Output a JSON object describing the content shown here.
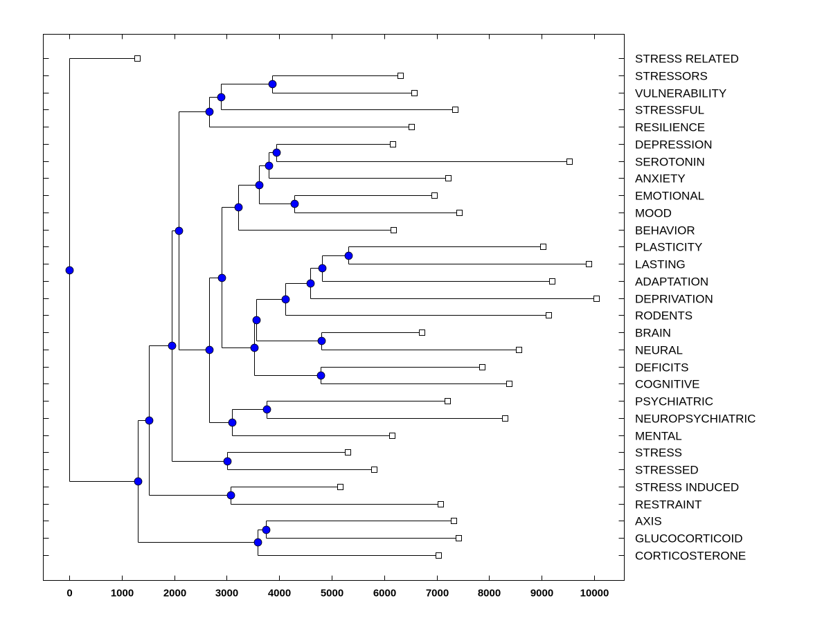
{
  "chart_data": {
    "type": "dendrogram",
    "title": "",
    "xlabel": "",
    "ylabel": "",
    "xlim": [
      -500,
      10550
    ],
    "x_ticks": [
      0,
      1000,
      2000,
      3000,
      4000,
      5000,
      6000,
      7000,
      8000,
      9000,
      10000
    ],
    "x_tick_labels": [
      "0",
      "1000",
      "2000",
      "3000",
      "4000",
      "5000",
      "6000",
      "7000",
      "8000",
      "9000",
      "10000"
    ],
    "grid": false,
    "legend": "none",
    "colors": {
      "line": "#000000",
      "node_fill": "#0000ff",
      "node_stroke": "#000000",
      "leaf_fill": "#ffffff",
      "background": "#ffffff"
    },
    "leaves": [
      {
        "label": "STRESS RELATED",
        "value": 1300
      },
      {
        "label": "STRESSORS",
        "value": 6320
      },
      {
        "label": "VULNERABILITY",
        "value": 6580
      },
      {
        "label": "STRESSFUL",
        "value": 7360
      },
      {
        "label": "RESILIENCE",
        "value": 6530
      },
      {
        "label": "DEPRESSION",
        "value": 6170
      },
      {
        "label": "SEROTONIN",
        "value": 9540
      },
      {
        "label": "ANXIETY",
        "value": 7230
      },
      {
        "label": "EMOTIONAL",
        "value": 6970
      },
      {
        "label": "MOOD",
        "value": 7440
      },
      {
        "label": "BEHAVIOR",
        "value": 6190
      },
      {
        "label": "PLASTICITY",
        "value": 9040
      },
      {
        "label": "LASTING",
        "value": 9910
      },
      {
        "label": "ADAPTATION",
        "value": 9210
      },
      {
        "label": "DEPRIVATION",
        "value": 10050
      },
      {
        "label": "RODENTS",
        "value": 9140
      },
      {
        "label": "BRAIN",
        "value": 6730
      },
      {
        "label": "NEURAL",
        "value": 8580
      },
      {
        "label": "DEFICITS",
        "value": 7880
      },
      {
        "label": "COGNITIVE",
        "value": 8390
      },
      {
        "label": "PSYCHIATRIC",
        "value": 7220
      },
      {
        "label": "NEUROPSYCHIATRIC",
        "value": 8310
      },
      {
        "label": "MENTAL",
        "value": 6160
      },
      {
        "label": "STRESS",
        "value": 5320
      },
      {
        "label": "STRESSED",
        "value": 5820
      },
      {
        "label": "STRESS INDUCED",
        "value": 5170
      },
      {
        "label": "RESTRAINT",
        "value": 7080
      },
      {
        "label": "AXIS",
        "value": 7340
      },
      {
        "label": "GLUCOCORTICOID",
        "value": 7430
      },
      {
        "label": "CORTICOSTERONE",
        "value": 7040
      }
    ],
    "tree": {
      "value": 0,
      "children": [
        {
          "leaf": 0
        },
        {
          "value": 1300,
          "children": [
            {
              "value": 1520,
              "children": [
                {
                  "value": 1950,
                  "children": [
                    {
                      "value": 2080,
                      "children": [
                        {
                          "value": 2660,
                          "children": [
                            {
                              "value": 2890,
                              "children": [
                                {
                                  "value": 3870,
                                  "children": [
                                    {
                                      "leaf": 1
                                    },
                                    {
                                      "leaf": 2
                                    }
                                  ]
                                },
                                {
                                  "leaf": 3
                                }
                              ]
                            },
                            {
                              "leaf": 4
                            }
                          ]
                        },
                        {
                          "value": 2660,
                          "children": [
                            {
                              "value": 2900,
                              "children": [
                                {
                                  "value": 3220,
                                  "children": [
                                    {
                                      "value": 3610,
                                      "children": [
                                        {
                                          "value": 3800,
                                          "children": [
                                            {
                                              "value": 3940,
                                              "children": [
                                                {
                                                  "leaf": 5
                                                },
                                                {
                                                  "leaf": 6
                                                }
                                              ]
                                            },
                                            {
                                              "leaf": 7
                                            }
                                          ]
                                        },
                                        {
                                          "value": 4290,
                                          "children": [
                                            {
                                              "leaf": 8
                                            },
                                            {
                                              "leaf": 9
                                            }
                                          ]
                                        }
                                      ]
                                    },
                                    {
                                      "leaf": 10
                                    }
                                  ]
                                },
                                {
                                  "value": 3520,
                                  "children": [
                                    {
                                      "value": 3560,
                                      "children": [
                                        {
                                          "value": 4120,
                                          "children": [
                                            {
                                              "value": 4590,
                                              "children": [
                                                {
                                                  "value": 4820,
                                                  "children": [
                                                    {
                                                      "value": 5320,
                                                      "children": [
                                                        {
                                                          "leaf": 11
                                                        },
                                                        {
                                                          "leaf": 12
                                                        }
                                                      ]
                                                    },
                                                    {
                                                      "leaf": 13
                                                    }
                                                  ]
                                                },
                                                {
                                                  "leaf": 14
                                                }
                                              ]
                                            },
                                            {
                                              "leaf": 15
                                            }
                                          ]
                                        },
                                        {
                                          "value": 4800,
                                          "children": [
                                            {
                                              "leaf": 16
                                            },
                                            {
                                              "leaf": 17
                                            }
                                          ]
                                        }
                                      ]
                                    },
                                    {
                                      "value": 4790,
                                      "children": [
                                        {
                                          "leaf": 18
                                        },
                                        {
                                          "leaf": 19
                                        }
                                      ]
                                    }
                                  ]
                                }
                              ]
                            },
                            {
                              "value": 3100,
                              "children": [
                                {
                                  "value": 3760,
                                  "children": [
                                    {
                                      "leaf": 20
                                    },
                                    {
                                      "leaf": 21
                                    }
                                  ]
                                },
                                {
                                  "leaf": 22
                                }
                              ]
                            }
                          ]
                        }
                      ]
                    },
                    {
                      "value": 3010,
                      "children": [
                        {
                          "leaf": 23
                        },
                        {
                          "leaf": 24
                        }
                      ]
                    }
                  ]
                },
                {
                  "value": 3070,
                  "children": [
                    {
                      "leaf": 25
                    },
                    {
                      "leaf": 26
                    }
                  ]
                }
              ]
            },
            {
              "value": 3590,
              "children": [
                {
                  "value": 3750,
                  "children": [
                    {
                      "leaf": 27
                    },
                    {
                      "leaf": 28
                    }
                  ]
                },
                {
                  "leaf": 29
                }
              ]
            }
          ]
        }
      ]
    }
  }
}
